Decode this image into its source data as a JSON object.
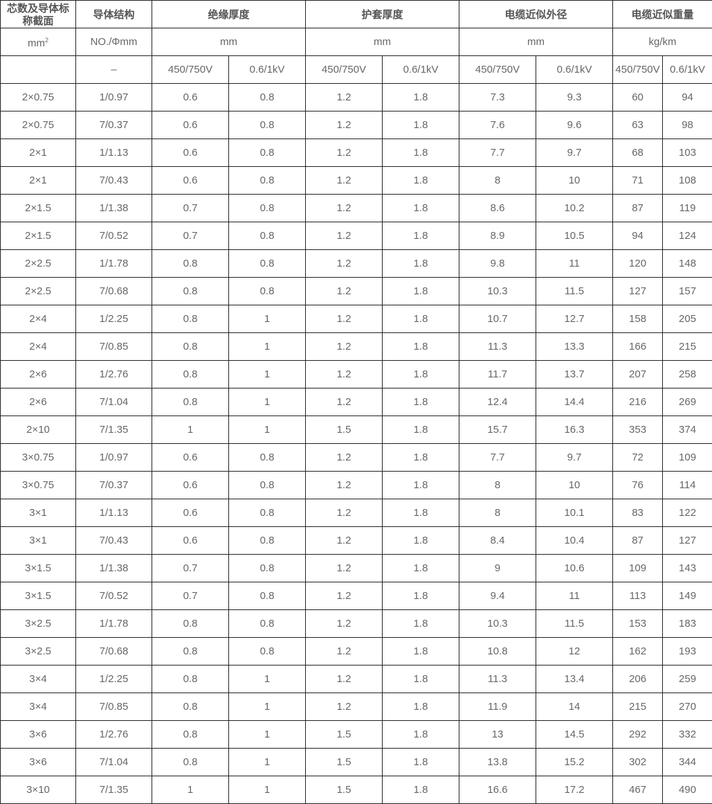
{
  "headers": {
    "row1": [
      "芯数及导体标称截面",
      "导体结构",
      "绝缘厚度",
      "护套厚度",
      "电缆近似外径",
      "电缆近似重量"
    ],
    "row2": {
      "area_unit": "mm",
      "area_unit_sup": "2",
      "structure_unit": "NO./Φmm",
      "insulation_unit": "mm",
      "sheath_unit": "mm",
      "diameter_unit": "mm",
      "weight_unit": "kg/km"
    },
    "row3": [
      "",
      "–",
      "450/750V",
      "0.6/1kV",
      "450/750V",
      "0.6/1kV",
      "450/750V",
      "0.6/1kV",
      "450/750V",
      "0.6/1kV"
    ]
  },
  "rows": [
    [
      "2×0.75",
      "1/0.97",
      "0.6",
      "0.8",
      "1.2",
      "1.8",
      "7.3",
      "9.3",
      "60",
      "94"
    ],
    [
      "2×0.75",
      "7/0.37",
      "0.6",
      "0.8",
      "1.2",
      "1.8",
      "7.6",
      "9.6",
      "63",
      "98"
    ],
    [
      "2×1",
      "1/1.13",
      "0.6",
      "0.8",
      "1.2",
      "1.8",
      "7.7",
      "9.7",
      "68",
      "103"
    ],
    [
      "2×1",
      "7/0.43",
      "0.6",
      "0.8",
      "1.2",
      "1.8",
      "8",
      "10",
      "71",
      "108"
    ],
    [
      "2×1.5",
      "1/1.38",
      "0.7",
      "0.8",
      "1.2",
      "1.8",
      "8.6",
      "10.2",
      "87",
      "119"
    ],
    [
      "2×1.5",
      "7/0.52",
      "0.7",
      "0.8",
      "1.2",
      "1.8",
      "8.9",
      "10.5",
      "94",
      "124"
    ],
    [
      "2×2.5",
      "1/1.78",
      "0.8",
      "0.8",
      "1.2",
      "1.8",
      "9.8",
      "11",
      "120",
      "148"
    ],
    [
      "2×2.5",
      "7/0.68",
      "0.8",
      "0.8",
      "1.2",
      "1.8",
      "10.3",
      "11.5",
      "127",
      "157"
    ],
    [
      "2×4",
      "1/2.25",
      "0.8",
      "1",
      "1.2",
      "1.8",
      "10.7",
      "12.7",
      "158",
      "205"
    ],
    [
      "2×4",
      "7/0.85",
      "0.8",
      "1",
      "1.2",
      "1.8",
      "11.3",
      "13.3",
      "166",
      "215"
    ],
    [
      "2×6",
      "1/2.76",
      "0.8",
      "1",
      "1.2",
      "1.8",
      "11.7",
      "13.7",
      "207",
      "258"
    ],
    [
      "2×6",
      "7/1.04",
      "0.8",
      "1",
      "1.2",
      "1.8",
      "12.4",
      "14.4",
      "216",
      "269"
    ],
    [
      "2×10",
      "7/1.35",
      "1",
      "1",
      "1.5",
      "1.8",
      "15.7",
      "16.3",
      "353",
      "374"
    ],
    [
      "3×0.75",
      "1/0.97",
      "0.6",
      "0.8",
      "1.2",
      "1.8",
      "7.7",
      "9.7",
      "72",
      "109"
    ],
    [
      "3×0.75",
      "7/0.37",
      "0.6",
      "0.8",
      "1.2",
      "1.8",
      "8",
      "10",
      "76",
      "114"
    ],
    [
      "3×1",
      "1/1.13",
      "0.6",
      "0.8",
      "1.2",
      "1.8",
      "8",
      "10.1",
      "83",
      "122"
    ],
    [
      "3×1",
      "7/0.43",
      "0.6",
      "0.8",
      "1.2",
      "1.8",
      "8.4",
      "10.4",
      "87",
      "127"
    ],
    [
      "3×1.5",
      "1/1.38",
      "0.7",
      "0.8",
      "1.2",
      "1.8",
      "9",
      "10.6",
      "109",
      "143"
    ],
    [
      "3×1.5",
      "7/0.52",
      "0.7",
      "0.8",
      "1.2",
      "1.8",
      "9.4",
      "11",
      "113",
      "149"
    ],
    [
      "3×2.5",
      "1/1.78",
      "0.8",
      "0.8",
      "1.2",
      "1.8",
      "10.3",
      "11.5",
      "153",
      "183"
    ],
    [
      "3×2.5",
      "7/0.68",
      "0.8",
      "0.8",
      "1.2",
      "1.8",
      "10.8",
      "12",
      "162",
      "193"
    ],
    [
      "3×4",
      "1/2.25",
      "0.8",
      "1",
      "1.2",
      "1.8",
      "11.3",
      "13.4",
      "206",
      "259"
    ],
    [
      "3×4",
      "7/0.85",
      "0.8",
      "1",
      "1.2",
      "1.8",
      "11.9",
      "14",
      "215",
      "270"
    ],
    [
      "3×6",
      "1/2.76",
      "0.8",
      "1",
      "1.5",
      "1.8",
      "13",
      "14.5",
      "292",
      "332"
    ],
    [
      "3×6",
      "7/1.04",
      "0.8",
      "1",
      "1.5",
      "1.8",
      "13.8",
      "15.2",
      "302",
      "344"
    ],
    [
      "3×10",
      "7/1.35",
      "1",
      "1",
      "1.5",
      "1.8",
      "16.6",
      "17.2",
      "467",
      "490"
    ]
  ]
}
